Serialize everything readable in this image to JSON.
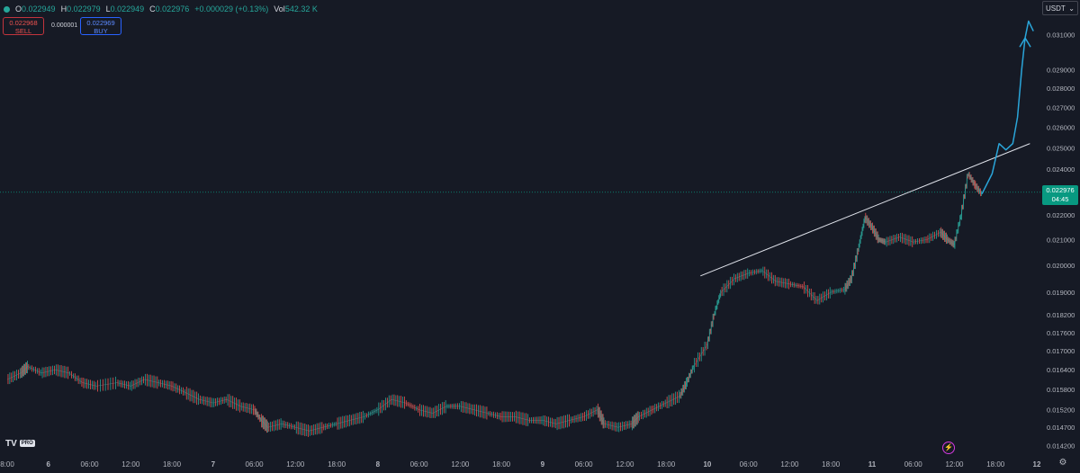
{
  "header": {
    "o_label": "O",
    "o_value": "0.022949",
    "h_label": "H",
    "h_value": "0.022979",
    "l_label": "L",
    "l_value": "0.022949",
    "c_label": "C",
    "c_value": "0.022976",
    "change": "+0.000029 (+0.13%)",
    "vol_label": "Vol",
    "vol_value": "542.32 K"
  },
  "trade": {
    "sell_price": "0.022968",
    "sell_label": "SELL",
    "spread": "0.000001",
    "buy_price": "0.022969",
    "buy_label": "BUY"
  },
  "currency": "USDT",
  "last_price": {
    "value": "0.022976",
    "countdown": "04:45"
  },
  "logo": {
    "text": "TV",
    "badge": "PRO"
  },
  "icons": {
    "flash": "flash-icon",
    "settings": "settings-icon",
    "dropdown": "chevron-down-icon"
  },
  "colors": {
    "background": "#161a25",
    "up": "#26a69a",
    "down": "#ef5350",
    "trendline": "#e0e3eb",
    "projection": "#2aa5d9",
    "price_tag": "#089981"
  },
  "chart_data": {
    "type": "line",
    "y_scale": "log",
    "ylim": [
      0.0139,
      0.0321
    ],
    "y_ticks": [
      "0.031000",
      "0.029000",
      "0.028000",
      "0.027000",
      "0.026000",
      "0.025000",
      "0.024000",
      "0.022000",
      "0.021000",
      "0.020000",
      "0.019000",
      "0.018200",
      "0.017600",
      "0.017000",
      "0.016400",
      "0.015800",
      "0.015200",
      "0.014700",
      "0.014200"
    ],
    "x_tick_labels": [
      "8:00",
      "6",
      "06:00",
      "12:00",
      "18:00",
      "7",
      "06:00",
      "12:00",
      "18:00",
      "8",
      "06:00",
      "12:00",
      "18:00",
      "9",
      "06:00",
      "12:00",
      "18:00",
      "10",
      "06:00",
      "12:00",
      "18:00",
      "11",
      "06:00",
      "12:00",
      "18:00",
      "12"
    ],
    "x_tick_hours": [
      0,
      6,
      12,
      18,
      24,
      30,
      36,
      42,
      48,
      54,
      60,
      66,
      72,
      78,
      84,
      90,
      96,
      102,
      108,
      114,
      120,
      126,
      132,
      138,
      144,
      150
    ],
    "xlim_hours": [
      0,
      150
    ],
    "series": [
      {
        "values": [
          {
            "t": 0,
            "v": 0.0161
          },
          {
            "t": 2,
            "v": 0.0163
          },
          {
            "t": 3,
            "v": 0.0165
          },
          {
            "t": 5,
            "v": 0.0163
          },
          {
            "t": 7,
            "v": 0.0164
          },
          {
            "t": 9,
            "v": 0.0163
          },
          {
            "t": 11,
            "v": 0.016
          },
          {
            "t": 13,
            "v": 0.0159
          },
          {
            "t": 16,
            "v": 0.016
          },
          {
            "t": 18,
            "v": 0.0159
          },
          {
            "t": 20,
            "v": 0.0161
          },
          {
            "t": 22,
            "v": 0.016
          },
          {
            "t": 24,
            "v": 0.0159
          },
          {
            "t": 26,
            "v": 0.0157
          },
          {
            "t": 28,
            "v": 0.0155
          },
          {
            "t": 30,
            "v": 0.0154
          },
          {
            "t": 32,
            "v": 0.0155
          },
          {
            "t": 34,
            "v": 0.0153
          },
          {
            "t": 36,
            "v": 0.0152
          },
          {
            "t": 37,
            "v": 0.0149
          },
          {
            "t": 38,
            "v": 0.0147
          },
          {
            "t": 40,
            "v": 0.0148
          },
          {
            "t": 42,
            "v": 0.0147
          },
          {
            "t": 44,
            "v": 0.0146
          },
          {
            "t": 46,
            "v": 0.0147
          },
          {
            "t": 48,
            "v": 0.0148
          },
          {
            "t": 50,
            "v": 0.0149
          },
          {
            "t": 52,
            "v": 0.015
          },
          {
            "t": 54,
            "v": 0.0152
          },
          {
            "t": 56,
            "v": 0.0155
          },
          {
            "t": 58,
            "v": 0.0154
          },
          {
            "t": 60,
            "v": 0.0152
          },
          {
            "t": 62,
            "v": 0.0151
          },
          {
            "t": 64,
            "v": 0.0153
          },
          {
            "t": 66,
            "v": 0.0153
          },
          {
            "t": 68,
            "v": 0.0152
          },
          {
            "t": 70,
            "v": 0.0151
          },
          {
            "t": 72,
            "v": 0.015
          },
          {
            "t": 74,
            "v": 0.015
          },
          {
            "t": 76,
            "v": 0.0149
          },
          {
            "t": 78,
            "v": 0.0149
          },
          {
            "t": 80,
            "v": 0.0148
          },
          {
            "t": 82,
            "v": 0.0149
          },
          {
            "t": 84,
            "v": 0.015
          },
          {
            "t": 86,
            "v": 0.0152
          },
          {
            "t": 87,
            "v": 0.0148
          },
          {
            "t": 89,
            "v": 0.0147
          },
          {
            "t": 91,
            "v": 0.0148
          },
          {
            "t": 92,
            "v": 0.015
          },
          {
            "t": 94,
            "v": 0.0152
          },
          {
            "t": 96,
            "v": 0.0154
          },
          {
            "t": 98,
            "v": 0.0156
          },
          {
            "t": 99,
            "v": 0.016
          },
          {
            "t": 100,
            "v": 0.0165
          },
          {
            "t": 102,
            "v": 0.0172
          },
          {
            "t": 103,
            "v": 0.0182
          },
          {
            "t": 104,
            "v": 0.019
          },
          {
            "t": 106,
            "v": 0.0195
          },
          {
            "t": 108,
            "v": 0.0197
          },
          {
            "t": 110,
            "v": 0.0198
          },
          {
            "t": 112,
            "v": 0.0194
          },
          {
            "t": 114,
            "v": 0.0193
          },
          {
            "t": 116,
            "v": 0.0192
          },
          {
            "t": 118,
            "v": 0.0187
          },
          {
            "t": 120,
            "v": 0.019
          },
          {
            "t": 122,
            "v": 0.0191
          },
          {
            "t": 123,
            "v": 0.0195
          },
          {
            "t": 124,
            "v": 0.0206
          },
          {
            "t": 125,
            "v": 0.0219
          },
          {
            "t": 126,
            "v": 0.0215
          },
          {
            "t": 127,
            "v": 0.021
          },
          {
            "t": 128,
            "v": 0.0209
          },
          {
            "t": 130,
            "v": 0.0211
          },
          {
            "t": 132,
            "v": 0.0209
          },
          {
            "t": 134,
            "v": 0.021
          },
          {
            "t": 136,
            "v": 0.0213
          },
          {
            "t": 137,
            "v": 0.021
          },
          {
            "t": 138,
            "v": 0.0208
          },
          {
            "t": 139,
            "v": 0.022
          },
          {
            "t": 140,
            "v": 0.0238
          },
          {
            "t": 141,
            "v": 0.0233
          },
          {
            "t": 142,
            "v": 0.0229
          }
        ]
      }
    ],
    "trendline": [
      {
        "t": 101,
        "v": 0.0196
      },
      {
        "t": 149,
        "v": 0.0252
      }
    ],
    "projection": [
      {
        "t": 142,
        "v": 0.0229
      },
      {
        "t": 143.5,
        "v": 0.0238
      },
      {
        "t": 144.5,
        "v": 0.0252
      },
      {
        "t": 145.5,
        "v": 0.0249
      },
      {
        "t": 146.5,
        "v": 0.0252
      },
      {
        "t": 147.2,
        "v": 0.0265
      },
      {
        "t": 147.8,
        "v": 0.029
      },
      {
        "t": 148.3,
        "v": 0.0308
      },
      {
        "t": 148.8,
        "v": 0.0318
      },
      {
        "t": 149.5,
        "v": 0.0312
      }
    ]
  }
}
